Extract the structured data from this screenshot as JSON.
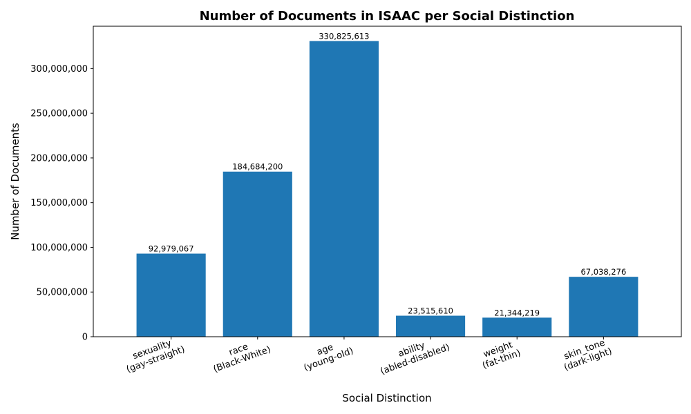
{
  "chart_data": {
    "type": "bar",
    "title": "Number of Documents in ISAAC per Social Distinction",
    "xlabel": "Social Distinction",
    "ylabel": "Number of Documents",
    "categories": [
      [
        "sexuality",
        "(gay-straight)"
      ],
      [
        "race",
        "(Black-White)"
      ],
      [
        "age",
        "(young-old)"
      ],
      [
        "ability",
        "(abled-disabled)"
      ],
      [
        "weight",
        "(fat-thin)"
      ],
      [
        "skin_tone",
        "(dark-light)"
      ]
    ],
    "values": [
      92979067,
      184684200,
      330825613,
      23515610,
      21344219,
      67038276
    ],
    "value_labels": [
      "92,979,067",
      "184,684,200",
      "330,825,613",
      "23,515,610",
      "21,344,219",
      "67,038,276"
    ],
    "yticks": [
      0,
      50000000,
      100000000,
      150000000,
      200000000,
      250000000,
      300000000
    ],
    "ytick_labels": [
      "0",
      "50,000,000",
      "100,000,000",
      "150,000,000",
      "200,000,000",
      "250,000,000",
      "300,000,000"
    ],
    "ylim": [
      0,
      347366894
    ],
    "bar_color": "#1f77b4",
    "grid": false,
    "legend": "none"
  }
}
